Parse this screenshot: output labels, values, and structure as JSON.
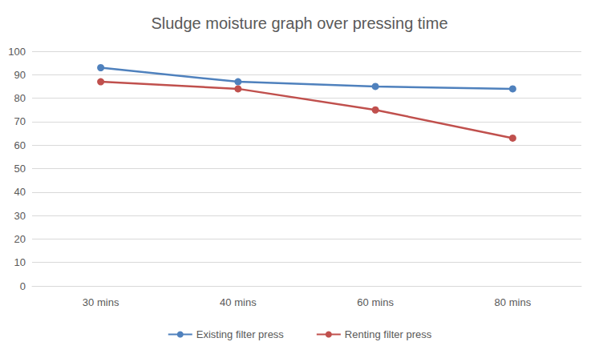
{
  "chart_data": {
    "type": "line",
    "title": "Sludge moisture graph over pressing time",
    "categories": [
      "30 mins",
      "40 mins",
      "60 mins",
      "80 mins"
    ],
    "series": [
      {
        "name": "Existing filter press",
        "color": "#4f81bd",
        "values": [
          93,
          87,
          85,
          84
        ]
      },
      {
        "name": "Renting filter press",
        "color": "#c0504d",
        "values": [
          87,
          84,
          75,
          63
        ]
      }
    ],
    "ylim": [
      0,
      100
    ],
    "yticks": [
      0,
      10,
      20,
      30,
      40,
      50,
      60,
      70,
      80,
      90,
      100
    ],
    "grid": true,
    "legend": "bottom",
    "marker": "circle",
    "line_style": "solid"
  }
}
